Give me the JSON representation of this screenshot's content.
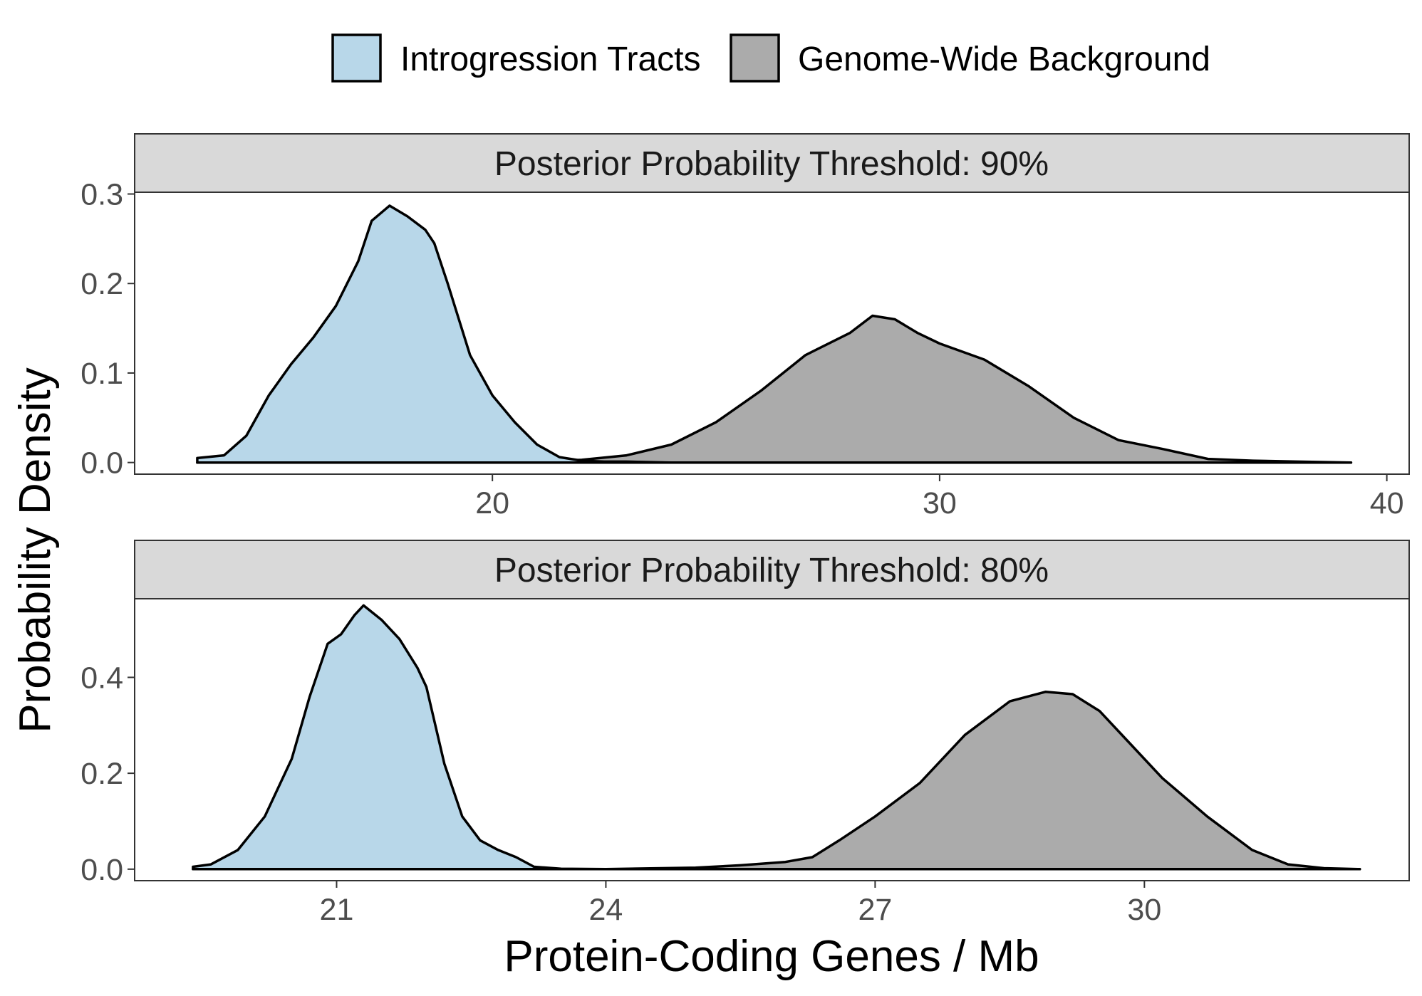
{
  "legend": {
    "items": [
      {
        "label": "Introgression Tracts",
        "color": "#b8d7e9"
      },
      {
        "label": "Genome-Wide Background",
        "color": "#ababab"
      }
    ]
  },
  "axes": {
    "xlabel": "Protein-Coding Genes / Mb",
    "ylabel": "Probability Density"
  },
  "chart_data": [
    {
      "type": "area",
      "title": "Posterior Probability Threshold: 90%",
      "xlim": [
        12,
        40.5
      ],
      "ylim": [
        -0.013,
        0.302
      ],
      "xticks": [
        20,
        30,
        40
      ],
      "yticks": [
        0.0,
        0.1,
        0.2,
        0.3
      ],
      "ytick_labels": [
        "0.0",
        "0.1",
        "0.2",
        "0.3"
      ],
      "series": [
        {
          "name": "Introgression Tracts",
          "color": "#b8d7e9",
          "x": [
            13.4,
            14.0,
            14.5,
            15.0,
            15.5,
            16.0,
            16.5,
            17.0,
            17.3,
            17.7,
            18.1,
            18.5,
            18.7,
            19.0,
            19.5,
            20.0,
            20.5,
            21.0,
            21.5,
            22.0,
            22.5,
            23.0,
            24.0,
            25.0,
            30.0,
            35.0,
            39.2
          ],
          "y": [
            0.005,
            0.008,
            0.03,
            0.075,
            0.11,
            0.14,
            0.175,
            0.225,
            0.27,
            0.287,
            0.275,
            0.26,
            0.245,
            0.2,
            0.12,
            0.075,
            0.045,
            0.02,
            0.006,
            0.002,
            0.001,
            0.001,
            0.0,
            0.0,
            0.0,
            0.0,
            0.0
          ]
        },
        {
          "name": "Genome-Wide Background",
          "color": "#ababab",
          "x": [
            13.4,
            18.0,
            20.0,
            21.0,
            22.0,
            23.0,
            24.0,
            25.0,
            26.0,
            27.0,
            28.0,
            28.5,
            29.0,
            29.5,
            30.0,
            31.0,
            32.0,
            33.0,
            34.0,
            35.0,
            36.0,
            37.0,
            38.0,
            39.2
          ],
          "y": [
            0.0,
            0.0,
            0.0,
            0.001,
            0.003,
            0.008,
            0.02,
            0.045,
            0.08,
            0.12,
            0.145,
            0.164,
            0.16,
            0.145,
            0.133,
            0.115,
            0.085,
            0.05,
            0.025,
            0.015,
            0.004,
            0.002,
            0.001,
            0.0
          ]
        }
      ]
    },
    {
      "type": "area",
      "title": "Posterior Probability Threshold: 80%",
      "xlim": [
        18.75,
        32.95
      ],
      "ylim": [
        -0.024,
        0.564
      ],
      "xticks": [
        21,
        24,
        27,
        30
      ],
      "yticks": [
        0.0,
        0.2,
        0.4
      ],
      "ytick_labels": [
        "0.0",
        "0.2",
        "0.4"
      ],
      "series": [
        {
          "name": "Introgression Tracts",
          "color": "#b8d7e9",
          "x": [
            19.4,
            19.6,
            19.9,
            20.2,
            20.5,
            20.7,
            20.9,
            21.05,
            21.2,
            21.3,
            21.5,
            21.7,
            21.9,
            22.0,
            22.2,
            22.4,
            22.6,
            22.8,
            23.0,
            23.2,
            23.5,
            24.0,
            26.0,
            28.0,
            30.0,
            32.4
          ],
          "y": [
            0.005,
            0.01,
            0.04,
            0.11,
            0.23,
            0.36,
            0.47,
            0.49,
            0.53,
            0.55,
            0.52,
            0.48,
            0.42,
            0.38,
            0.22,
            0.11,
            0.06,
            0.04,
            0.025,
            0.005,
            0.001,
            0.0,
            0.0,
            0.0,
            0.0,
            0.0
          ]
        },
        {
          "name": "Genome-Wide Background",
          "color": "#ababab",
          "x": [
            19.4,
            23.0,
            24.0,
            25.0,
            25.5,
            26.0,
            26.3,
            26.6,
            27.0,
            27.5,
            28.0,
            28.5,
            28.9,
            29.2,
            29.5,
            29.8,
            30.2,
            30.7,
            31.2,
            31.6,
            32.0,
            32.4
          ],
          "y": [
            0.0,
            0.0,
            0.0,
            0.003,
            0.008,
            0.015,
            0.025,
            0.06,
            0.11,
            0.18,
            0.28,
            0.35,
            0.37,
            0.365,
            0.33,
            0.27,
            0.19,
            0.11,
            0.04,
            0.01,
            0.002,
            0.0
          ]
        }
      ]
    }
  ]
}
